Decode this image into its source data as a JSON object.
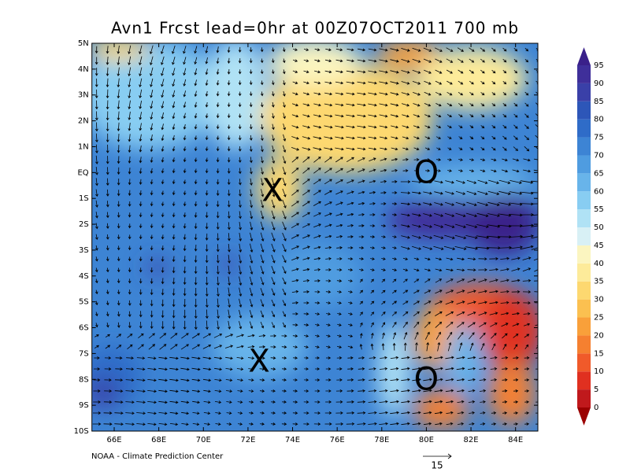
{
  "title": "Avn1 Frcst lead=0hr at 00Z07OCT2011 700 mb",
  "map": {
    "xlim": [
      65,
      85
    ],
    "ylim": [
      -10,
      5
    ],
    "xticks": [
      {
        "value": 66,
        "label": "66E"
      },
      {
        "value": 68,
        "label": "68E"
      },
      {
        "value": 70,
        "label": "70E"
      },
      {
        "value": 72,
        "label": "72E"
      },
      {
        "value": 74,
        "label": "74E"
      },
      {
        "value": 76,
        "label": "76E"
      },
      {
        "value": 78,
        "label": "78E"
      },
      {
        "value": 80,
        "label": "80E"
      },
      {
        "value": 82,
        "label": "82E"
      },
      {
        "value": 84,
        "label": "84E"
      }
    ],
    "yticks": [
      {
        "value": 5,
        "label": "5N"
      },
      {
        "value": 4,
        "label": "4N"
      },
      {
        "value": 3,
        "label": "3N"
      },
      {
        "value": 2,
        "label": "2N"
      },
      {
        "value": 1,
        "label": "1N"
      },
      {
        "value": 0,
        "label": "EQ"
      },
      {
        "value": -1,
        "label": "1S"
      },
      {
        "value": -2,
        "label": "2S"
      },
      {
        "value": -3,
        "label": "3S"
      },
      {
        "value": -4,
        "label": "4S"
      },
      {
        "value": -5,
        "label": "5S"
      },
      {
        "value": -6,
        "label": "6S"
      },
      {
        "value": -7,
        "label": "7S"
      },
      {
        "value": -8,
        "label": "8S"
      },
      {
        "value": -9,
        "label": "9S"
      },
      {
        "value": -10,
        "label": "10S"
      }
    ],
    "markers": [
      {
        "symbol": "X",
        "lon": 73.1,
        "lat": -0.7
      },
      {
        "symbol": "X",
        "lon": 72.5,
        "lat": -7.3
      },
      {
        "symbol": "O",
        "lon": 80.0,
        "lat": 0.0
      },
      {
        "symbol": "O",
        "lon": 80.0,
        "lat": -8.0
      }
    ]
  },
  "colorbar": {
    "levels": [
      0,
      5,
      10,
      15,
      20,
      25,
      30,
      35,
      40,
      45,
      50,
      55,
      60,
      65,
      70,
      75,
      80,
      85,
      90,
      95
    ],
    "colors": [
      "#9b0000",
      "#c0191c",
      "#e03020",
      "#f05a2a",
      "#f58030",
      "#f9a03a",
      "#fbc050",
      "#fdd870",
      "#fdeb9a",
      "#fbf5c0",
      "#d8f0f5",
      "#b0e2f5",
      "#88cdf2",
      "#68b4ea",
      "#4f9ce0",
      "#3d84d4",
      "#2f6cc8",
      "#2d56b8",
      "#3a40a8",
      "#3f2f9a",
      "#3a208a"
    ]
  },
  "vector_scale": {
    "value": 15
  },
  "credit": "NOAA - Climate Prediction Center"
}
